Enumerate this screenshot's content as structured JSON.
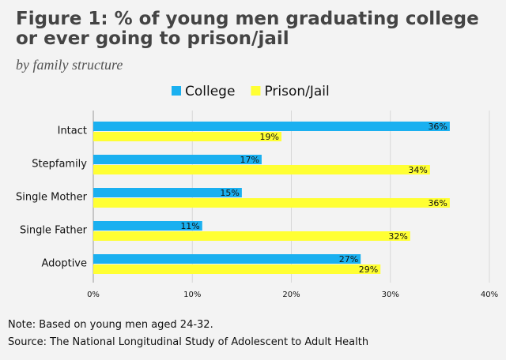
{
  "chart_data": {
    "type": "barh",
    "title": "Figure 1: % of young men graduating college or ever going to prison/jail",
    "subtitle": "by family structure",
    "categories": [
      "Intact",
      "Stepfamily",
      "Single Mother",
      "Single Father",
      "Adoptive"
    ],
    "series": [
      {
        "name": "College",
        "color": "#1ab0f0",
        "values": [
          36,
          17,
          15,
          11,
          27
        ],
        "value_labels": [
          "36%",
          "17%",
          "15%",
          "11%",
          "27%"
        ]
      },
      {
        "name": "Prison/Jail",
        "color": "#ffff33",
        "values": [
          19,
          34,
          36,
          32,
          29
        ],
        "value_labels": [
          "19%",
          "34%",
          "36%",
          "32%",
          "29%"
        ]
      }
    ],
    "xlim": [
      0,
      40
    ],
    "xticks": [
      {
        "value": 0,
        "label": "0%"
      },
      {
        "value": 10,
        "label": "10%"
      },
      {
        "value": 20,
        "label": "20%"
      },
      {
        "value": 30,
        "label": "30%"
      },
      {
        "value": 40,
        "label": "40%"
      }
    ],
    "grid": true,
    "legend": "top",
    "note": "Note: Based on young men aged 24-32.",
    "source": "Source: The National Longitudinal Study of Adolescent to Adult Health"
  }
}
